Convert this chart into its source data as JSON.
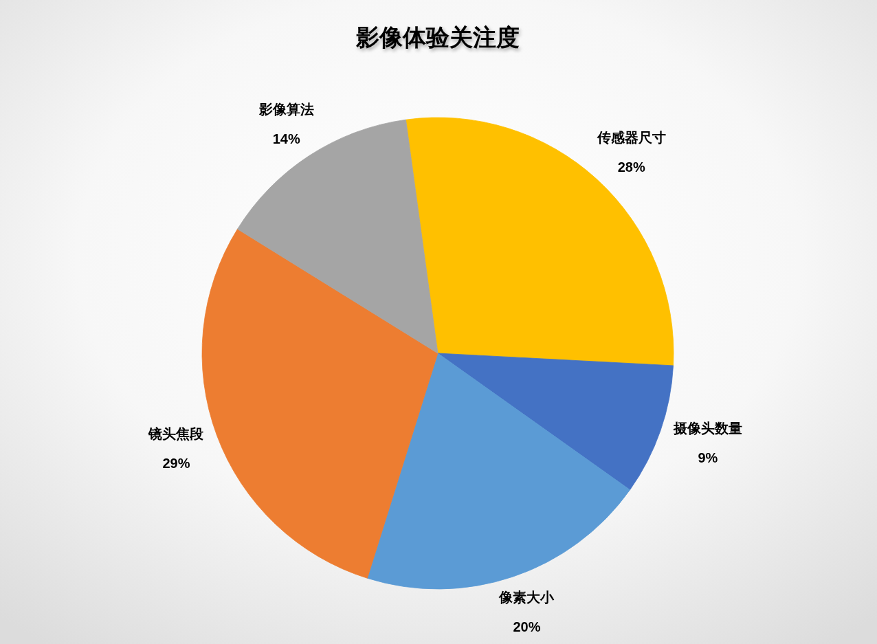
{
  "chart_data": {
    "type": "pie",
    "title": "影像体验关注度",
    "categories": [
      "传感器尺寸",
      "摄像头数量",
      "像素大小",
      "镜头焦段",
      "影像算法"
    ],
    "values": [
      28,
      9,
      20,
      29,
      14
    ],
    "colors": [
      "#ffc000",
      "#4472c4",
      "#5b9bd5",
      "#ed7d31",
      "#a5a5a5"
    ],
    "value_labels": [
      "28%",
      "9%",
      "20%",
      "29%",
      "14%"
    ],
    "legend": false
  }
}
